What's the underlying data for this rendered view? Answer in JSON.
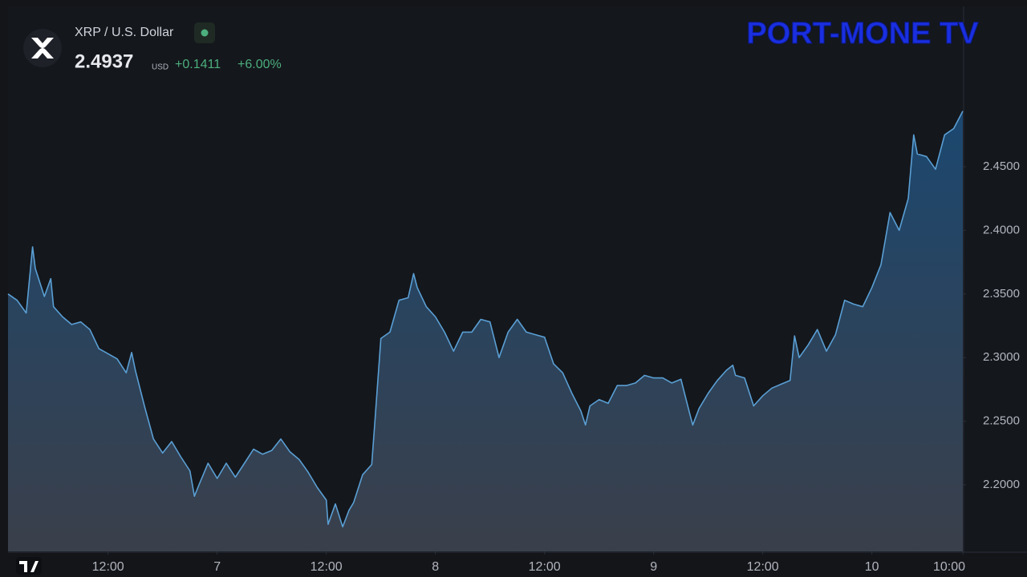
{
  "chart_data": {
    "type": "area",
    "title": "XRP / U.S. Dollar",
    "last_price": 2.4937,
    "currency": "USD",
    "change": "+0.1411",
    "change_percent": "+6.00%",
    "brand": "PORT-MONE TV",
    "color": "#5a9fd4",
    "x": [
      1,
      2,
      3,
      3.7,
      4,
      5,
      5.7,
      6,
      7,
      8,
      9,
      10,
      11,
      12,
      13,
      14,
      14.6,
      15,
      16,
      17,
      18,
      19,
      20,
      21,
      21.5,
      22,
      23,
      24,
      25,
      26,
      27,
      28,
      29,
      30,
      31,
      32,
      33,
      34,
      35,
      36,
      36.2,
      37,
      37.8,
      38.5,
      39,
      40,
      41,
      41.3,
      42,
      43,
      44,
      45,
      45.6,
      46,
      47,
      48,
      49,
      50,
      51,
      52,
      53,
      54,
      55,
      56,
      57,
      58,
      59,
      60,
      61,
      62,
      63,
      64,
      64.5,
      65,
      66,
      67,
      68,
      69,
      70,
      71,
      72,
      73,
      74,
      75,
      76,
      76.3,
      77,
      78,
      79,
      80,
      80.7,
      81,
      82,
      83,
      84,
      85,
      86,
      87,
      87.5,
      88,
      89,
      90,
      91,
      92,
      93,
      94,
      95,
      96,
      97,
      98,
      99,
      100,
      100.6,
      101,
      102,
      103,
      104,
      105,
      106
    ],
    "values": [
      2.35,
      2.345,
      2.335,
      2.387,
      2.37,
      2.348,
      2.362,
      2.34,
      2.332,
      2.326,
      2.328,
      2.322,
      2.307,
      2.303,
      2.299,
      2.288,
      2.304,
      2.29,
      2.262,
      2.236,
      2.225,
      2.234,
      2.222,
      2.211,
      2.191,
      2.2,
      2.217,
      2.205,
      2.217,
      2.206,
      2.217,
      2.228,
      2.224,
      2.227,
      2.236,
      2.226,
      2.22,
      2.21,
      2.198,
      2.188,
      2.169,
      2.185,
      2.167,
      2.18,
      2.186,
      2.208,
      2.216,
      2.245,
      2.315,
      2.32,
      2.345,
      2.347,
      2.366,
      2.355,
      2.34,
      2.332,
      2.32,
      2.305,
      2.32,
      2.32,
      2.33,
      2.328,
      2.3,
      2.32,
      2.33,
      2.32,
      2.318,
      2.316,
      2.295,
      2.288,
      2.272,
      2.258,
      2.247,
      2.262,
      2.267,
      2.264,
      2.278,
      2.278,
      2.28,
      2.286,
      2.284,
      2.284,
      2.28,
      2.283,
      2.255,
      2.247,
      2.26,
      2.272,
      2.282,
      2.29,
      2.294,
      2.286,
      2.284,
      2.262,
      2.27,
      2.276,
      2.279,
      2.282,
      2.317,
      2.3,
      2.31,
      2.322,
      2.305,
      2.318,
      2.345,
      2.342,
      2.34,
      2.355,
      2.373,
      2.414,
      2.4,
      2.425,
      2.475,
      2.46,
      2.458,
      2.448,
      2.475,
      2.48,
      2.4937
    ],
    "xlim": [
      1,
      106
    ],
    "xticks": [
      {
        "value": 12,
        "label": "12:00"
      },
      {
        "value": 24,
        "label": "7"
      },
      {
        "value": 36,
        "label": "12:00"
      },
      {
        "value": 48,
        "label": "8"
      },
      {
        "value": 60,
        "label": "12:00"
      },
      {
        "value": 72,
        "label": "9"
      },
      {
        "value": 84,
        "label": "12:00"
      },
      {
        "value": 96,
        "label": "10"
      },
      {
        "value": 106,
        "label": "10:00"
      }
    ],
    "ylim": [
      2.1477,
      2.5747
    ],
    "yticks": [
      {
        "value": 2.2,
        "label": "2.2000"
      },
      {
        "value": 2.25,
        "label": "2.2500"
      },
      {
        "value": 2.3,
        "label": "2.3000"
      },
      {
        "value": 2.35,
        "label": "2.3500"
      },
      {
        "value": 2.4,
        "label": "2.4000"
      },
      {
        "value": 2.45,
        "label": "2.4500"
      }
    ],
    "grid": false
  }
}
